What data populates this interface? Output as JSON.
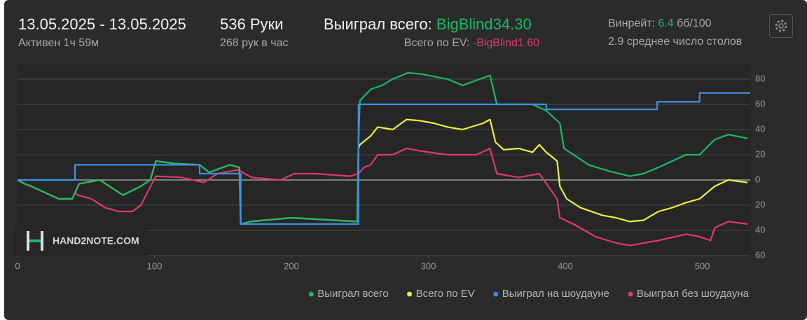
{
  "header": {
    "date_range": "13.05.2025 - 13.05.2025",
    "active": "Активен 1ч 59м",
    "hands": "536 Руки",
    "hands_per_hour": "268 рук в час",
    "won_label": "Выиграл всего: ",
    "won_value": "BigBlind34.30",
    "ev_label": "Всего по EV: ",
    "ev_value": "-BigBlind1.60",
    "winrate_label": "Винрейт: ",
    "winrate_value": "6.4",
    "winrate_unit": " бб/100",
    "tables": "2.9 среднее число столов"
  },
  "watermark": "HAND2NOTE.COM",
  "chart_data": {
    "type": "line",
    "xlim": [
      0,
      535
    ],
    "xticks": [
      0,
      100,
      200,
      300,
      400,
      500
    ],
    "ylim": [
      -60,
      90
    ],
    "yticks": [
      {
        "value": -60,
        "label": "60"
      },
      {
        "value": -40,
        "label": "40"
      },
      {
        "value": -20,
        "label": "20"
      },
      0,
      20,
      40,
      60,
      80
    ],
    "grid": true,
    "series": [
      {
        "name": "Выиграл всего",
        "color": "#1db866",
        "x": [
          0,
          5,
          10,
          20,
          30,
          40,
          42,
          45,
          60,
          77,
          90,
          97,
          101,
          115,
          133,
          140,
          155,
          162,
          163,
          170,
          200,
          248,
          249,
          250,
          258,
          266,
          274,
          285,
          295,
          314,
          325,
          345,
          350,
          376,
          386,
          396,
          399,
          406,
          417,
          432,
          447,
          457,
          468,
          478,
          488,
          498,
          509,
          519,
          533
        ],
        "values": [
          0,
          -3,
          -5,
          -10,
          -15,
          -15,
          -10,
          -3,
          0,
          -12,
          -5,
          0,
          15,
          13,
          12,
          6,
          12,
          10,
          -35,
          -33,
          -30,
          -33,
          30,
          63,
          72,
          75,
          80,
          85,
          84,
          80,
          75,
          83,
          60,
          60,
          55,
          45,
          25,
          20,
          12,
          7,
          3,
          5,
          10,
          15,
          20,
          20,
          32,
          36,
          33
        ]
      },
      {
        "name": "Всего по EV",
        "color": "#f0ef3c",
        "x": [
          0,
          5,
          10,
          20,
          30,
          40,
          42,
          45,
          60,
          77,
          90,
          97,
          101,
          115,
          133,
          140,
          155,
          162,
          163,
          170,
          200,
          248,
          249,
          250,
          258,
          263,
          274,
          284,
          294,
          304,
          314,
          325,
          340,
          345,
          349,
          355,
          366,
          376,
          381,
          386,
          394,
          396,
          401,
          411,
          427,
          437,
          447,
          457,
          468,
          478,
          488,
          498,
          509,
          519,
          533
        ],
        "values": [
          0,
          -3,
          -5,
          -10,
          -15,
          -15,
          -10,
          -3,
          0,
          -12,
          -5,
          0,
          15,
          13,
          12,
          6,
          12,
          10,
          -35,
          -33,
          -30,
          -33,
          25,
          28,
          35,
          42,
          40,
          48,
          47,
          45,
          42,
          40,
          45,
          48,
          30,
          24,
          25,
          22,
          28,
          22,
          15,
          -5,
          -15,
          -22,
          -28,
          -30,
          -33,
          -32,
          -25,
          -22,
          -18,
          -15,
          -5,
          0,
          -2
        ]
      },
      {
        "name": "Выиграл на шоудауне",
        "color": "#3d8fe3",
        "x": [
          0,
          42,
          42,
          133,
          133,
          163,
          163,
          249,
          249,
          386,
          386,
          467,
          467,
          498,
          498,
          535
        ],
        "values": [
          0,
          0,
          12,
          12,
          5,
          5,
          -35,
          -35,
          60,
          60,
          56,
          56,
          62,
          62,
          69,
          69
        ]
      },
      {
        "name": "Выиграл без шоудауна",
        "color": "#e23670",
        "x": [
          0,
          5,
          10,
          20,
          30,
          40,
          42,
          44,
          54,
          64,
          74,
          84,
          90,
          101,
          120,
          136,
          146,
          161,
          171,
          192,
          202,
          217,
          243,
          249,
          253,
          258,
          263,
          274,
          284,
          294,
          314,
          335,
          345,
          350,
          366,
          381,
          394,
          396,
          406,
          422,
          437,
          447,
          468,
          488,
          498,
          506,
          509,
          519,
          533
        ],
        "values": [
          0,
          -3,
          -5,
          -10,
          -15,
          -15,
          -10,
          -12,
          -15,
          -22,
          -25,
          -25,
          -20,
          3,
          2,
          -2,
          5,
          8,
          2,
          0,
          5,
          5,
          3,
          5,
          10,
          12,
          20,
          20,
          25,
          23,
          20,
          20,
          25,
          5,
          2,
          5,
          -15,
          -30,
          -35,
          -45,
          -50,
          -52,
          -48,
          -43,
          -45,
          -48,
          -38,
          -33,
          -35
        ]
      }
    ]
  }
}
